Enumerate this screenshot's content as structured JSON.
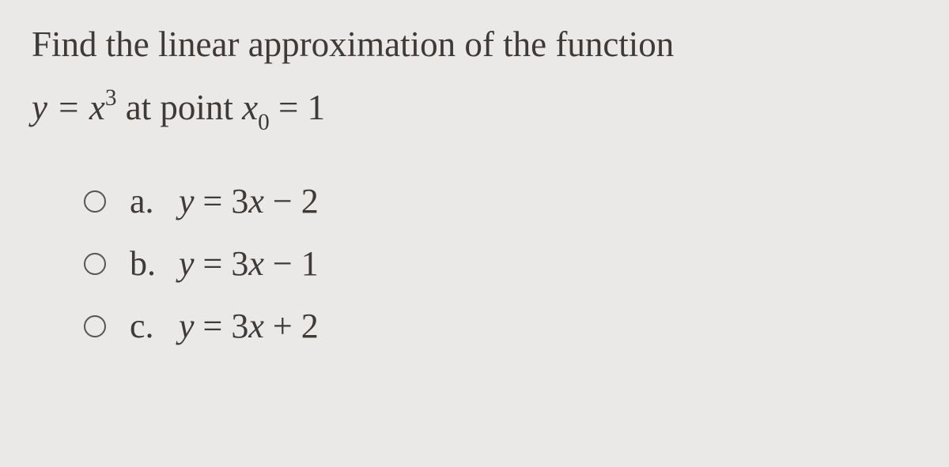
{
  "question": {
    "line1": "Find the linear approximation of the function",
    "line2_prefix": "y = x",
    "line2_exp": "3",
    "line2_mid": " at point ",
    "line2_var": "x",
    "line2_sub": "0",
    "line2_suffix": " = 1"
  },
  "options": [
    {
      "letter": "a.",
      "prefix": "y",
      "eq": " = 3",
      "var": "x",
      "tail": " − 2"
    },
    {
      "letter": "b.",
      "prefix": "y",
      "eq": " = 3",
      "var": "x",
      "tail": " − 1"
    },
    {
      "letter": "c.",
      "prefix": "y",
      "eq": " = 3",
      "var": "x",
      "tail": " + 2"
    }
  ],
  "style": {
    "background_color": "#ebe8e8",
    "text_color": "#3d3a38",
    "question_fontsize": 45,
    "option_fontsize": 44,
    "radio_border_color": "#555"
  }
}
